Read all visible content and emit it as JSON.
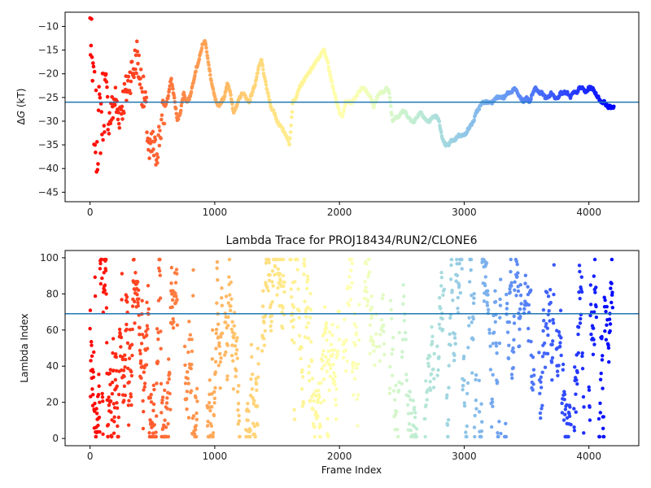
{
  "chart_data": [
    {
      "type": "scatter",
      "title": "",
      "ylabel_prefix": "Δ",
      "ylabel_var": "G",
      "ylabel_unit": " (kT)",
      "xlabel": "",
      "xlim": [
        -200,
        4400
      ],
      "ylim": [
        -47,
        -7
      ],
      "xticks": [
        0,
        1000,
        2000,
        3000,
        4000
      ],
      "yticks": [
        -45,
        -40,
        -35,
        -30,
        -25,
        -20,
        -15,
        -10
      ],
      "hline": -26,
      "hline_color": "#1f77b4",
      "colormap": "rainbow (red at frame 0 → violet at frame 4200)",
      "grid": false,
      "series": [
        {
          "x": [
            0,
            25,
            50,
            75,
            100,
            125,
            150,
            175,
            200,
            225,
            250,
            275,
            300,
            325,
            350,
            375,
            400,
            425,
            450,
            475,
            500,
            525,
            550,
            575,
            600,
            625,
            650,
            675,
            700,
            725,
            750,
            775,
            800,
            825,
            850,
            875,
            900,
            925,
            950,
            975,
            1000,
            1025,
            1050,
            1075,
            1100,
            1125,
            1150,
            1175,
            1200,
            1225,
            1250,
            1275,
            1300,
            1325,
            1350,
            1375,
            1400,
            1425,
            1450,
            1475,
            1500,
            1525,
            1550,
            1575,
            1600,
            1625,
            1650,
            1675,
            1700,
            1725,
            1750,
            1775,
            1800,
            1825,
            1850,
            1875,
            1900,
            1925,
            1950,
            1975,
            2000,
            2025,
            2050,
            2075,
            2100,
            2125,
            2150,
            2175,
            2200,
            2225,
            2250,
            2275,
            2300,
            2325,
            2350,
            2375,
            2400,
            2425,
            2450,
            2475,
            2500,
            2525,
            2550,
            2575,
            2600,
            2625,
            2650,
            2675,
            2700,
            2725,
            2750,
            2775,
            2800,
            2825,
            2850,
            2875,
            2900,
            2925,
            2950,
            2975,
            3000,
            3025,
            3050,
            3075,
            3100,
            3125,
            3150,
            3175,
            3200,
            3225,
            3250,
            3275,
            3300,
            3325,
            3350,
            3375,
            3400,
            3425,
            3450,
            3475,
            3500,
            3525,
            3550,
            3575,
            3600,
            3625,
            3650,
            3675,
            3700,
            3725,
            3750,
            3775,
            3800,
            3825,
            3850,
            3875,
            3900,
            3925,
            3950,
            3975,
            4000,
            4025,
            4050,
            4075,
            4100,
            4125,
            4150,
            4175,
            4200
          ],
          "y": [
            -10,
            -25,
            -33,
            -30,
            -27,
            -22,
            -30,
            -28,
            -25,
            -29,
            -27,
            -25,
            -23,
            -20,
            -19,
            -16,
            -20,
            -24,
            -28,
            -38,
            -35,
            -37,
            -34,
            -30,
            -27,
            -25,
            -21,
            -25,
            -30,
            -28,
            -24,
            -26,
            -25,
            -22,
            -19,
            -17,
            -14,
            -13,
            -18,
            -22,
            -25,
            -27,
            -26,
            -25,
            -22,
            -24,
            -28,
            -27,
            -25,
            -24,
            -25,
            -26,
            -24,
            -22,
            -19,
            -17,
            -21,
            -24,
            -27,
            -28,
            -30,
            -31,
            -32,
            -33,
            -35,
            -26,
            -25,
            -23,
            -22,
            -21,
            -20,
            -19,
            -18,
            -17,
            -16,
            -15,
            -17,
            -20,
            -23,
            -26,
            -28,
            -29,
            -26,
            -26,
            -26,
            -25,
            -24,
            -23,
            -23,
            -24,
            -25,
            -27,
            -25,
            -24,
            -24,
            -23,
            -24,
            -30,
            -29,
            -29,
            -28,
            -28,
            -29,
            -30,
            -30,
            -29,
            -28,
            -29,
            -30,
            -30,
            -29,
            -29,
            -30,
            -34,
            -35,
            -35,
            -34,
            -34,
            -33,
            -33,
            -33,
            -32,
            -31,
            -30,
            -28,
            -27,
            -26,
            -26,
            -26,
            -26,
            -25,
            -25,
            -25,
            -25,
            -24,
            -24,
            -23,
            -24,
            -25,
            -26,
            -25,
            -26,
            -24,
            -23,
            -24,
            -24,
            -25,
            -25,
            -24,
            -25,
            -25,
            -24,
            -24,
            -24,
            -25,
            -24,
            -24,
            -23,
            -23,
            -24,
            -23,
            -23,
            -24,
            -25,
            -26,
            -26,
            -27,
            -27,
            -27
          ]
        }
      ]
    },
    {
      "type": "scatter",
      "title": "Lambda Trace for PROJ18434/RUN2/CLONE6",
      "xlabel": "Frame Index",
      "ylabel": "Lambda Index",
      "xlim": [
        -200,
        4400
      ],
      "ylim": [
        -4,
        104
      ],
      "xticks": [
        0,
        1000,
        2000,
        3000,
        4000
      ],
      "yticks": [
        0,
        20,
        40,
        60,
        80,
        100
      ],
      "hline": 69,
      "hline_color": "#1f77b4",
      "colormap": "rainbow (red at frame 0 → violet at frame 4200)",
      "grid": false,
      "series": [
        {
          "x_range": [
            0,
            4200
          ],
          "y_range": [
            1,
            99
          ],
          "sampled_every_frames": 3
        }
      ]
    }
  ]
}
